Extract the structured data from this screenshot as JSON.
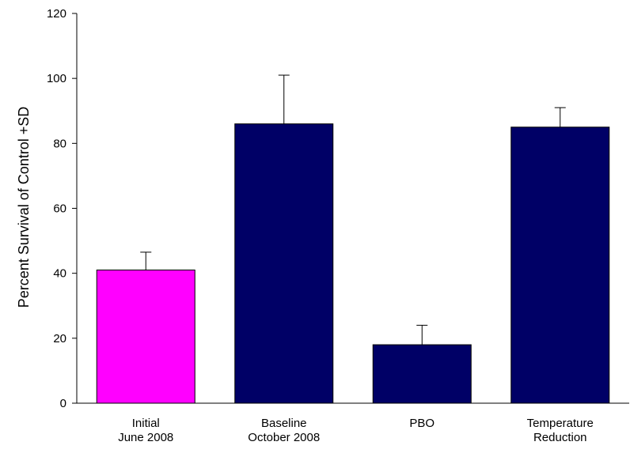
{
  "chart_data": {
    "type": "bar",
    "title": "",
    "xlabel": "",
    "ylabel": "Percent Survival of Control +SD",
    "ylim": [
      0,
      120
    ],
    "yticks": [
      "0",
      "20",
      "40",
      "60",
      "80",
      "100",
      "120"
    ],
    "grid": false,
    "categories": [
      [
        "Initial",
        "June 2008"
      ],
      [
        "Baseline",
        "October 2008"
      ],
      [
        "PBO"
      ],
      [
        "Temperature",
        "Reduction"
      ]
    ],
    "values": [
      41,
      86,
      18,
      85
    ],
    "errors": [
      5.5,
      15,
      6,
      6
    ],
    "colors": [
      "#ff00ff",
      "#000066",
      "#000066",
      "#000066"
    ]
  }
}
